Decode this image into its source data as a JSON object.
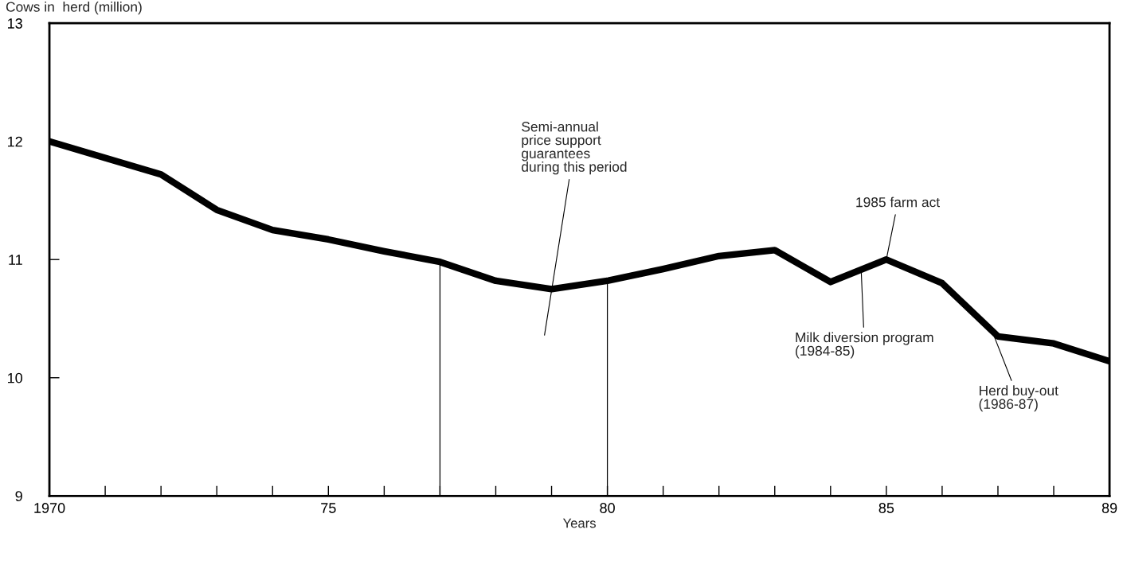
{
  "chart_data": {
    "type": "line",
    "ylabel": "Cows in  herd (million)",
    "xlabel": "Years",
    "x": [
      1970,
      1971,
      1972,
      1973,
      1974,
      1975,
      1976,
      1977,
      1978,
      1979,
      1980,
      1981,
      1982,
      1983,
      1984,
      1985,
      1986,
      1987,
      1988,
      1989
    ],
    "series": [
      {
        "color": "#000000",
        "values": [
          12.0,
          11.86,
          11.72,
          11.42,
          11.25,
          11.17,
          11.07,
          10.98,
          10.82,
          10.75,
          10.82,
          10.92,
          11.03,
          11.08,
          10.81,
          11.0,
          10.8,
          10.35,
          10.29,
          10.14
        ]
      }
    ],
    "xlim": [
      1970,
      1989
    ],
    "xticks": [
      {
        "value": 1970,
        "label": "1970"
      },
      {
        "value": 1971,
        "label": null
      },
      {
        "value": 1972,
        "label": null
      },
      {
        "value": 1973,
        "label": null
      },
      {
        "value": 1974,
        "label": null
      },
      {
        "value": 1975,
        "label": "75"
      },
      {
        "value": 1976,
        "label": null
      },
      {
        "value": 1977,
        "label": null
      },
      {
        "value": 1978,
        "label": null
      },
      {
        "value": 1979,
        "label": null
      },
      {
        "value": 1980,
        "label": "80"
      },
      {
        "value": 1981,
        "label": null
      },
      {
        "value": 1982,
        "label": null
      },
      {
        "value": 1983,
        "label": null
      },
      {
        "value": 1984,
        "label": null
      },
      {
        "value": 1985,
        "label": "85"
      },
      {
        "value": 1986,
        "label": null
      },
      {
        "value": 1987,
        "label": null
      },
      {
        "value": 1988,
        "label": null
      },
      {
        "value": 1989,
        "label": "89"
      }
    ],
    "ylim": [
      9,
      13
    ],
    "yticks": [
      9,
      10,
      11,
      12,
      13
    ],
    "ref_lines": [
      {
        "axis": "x",
        "value": 1977,
        "color": "#000000"
      },
      {
        "axis": "x",
        "value": 1980,
        "color": "#000000"
      }
    ],
    "annotations": [
      "Semi-annual\nprice support\nguarantees\nduring this period",
      {
        "text": "1985 farm act",
        "x": 1985,
        "y": 11.0
      },
      {
        "text": "Milk diversion program\n(1984-85)",
        "x": 1984.55,
        "y": 10.9
      },
      {
        "text": "Herd buy-out\n(1986-87)",
        "x": 1986.85,
        "y": 10.45
      }
    ],
    "grid": false,
    "legend": false,
    "marker": "none",
    "line_style": "solid"
  }
}
